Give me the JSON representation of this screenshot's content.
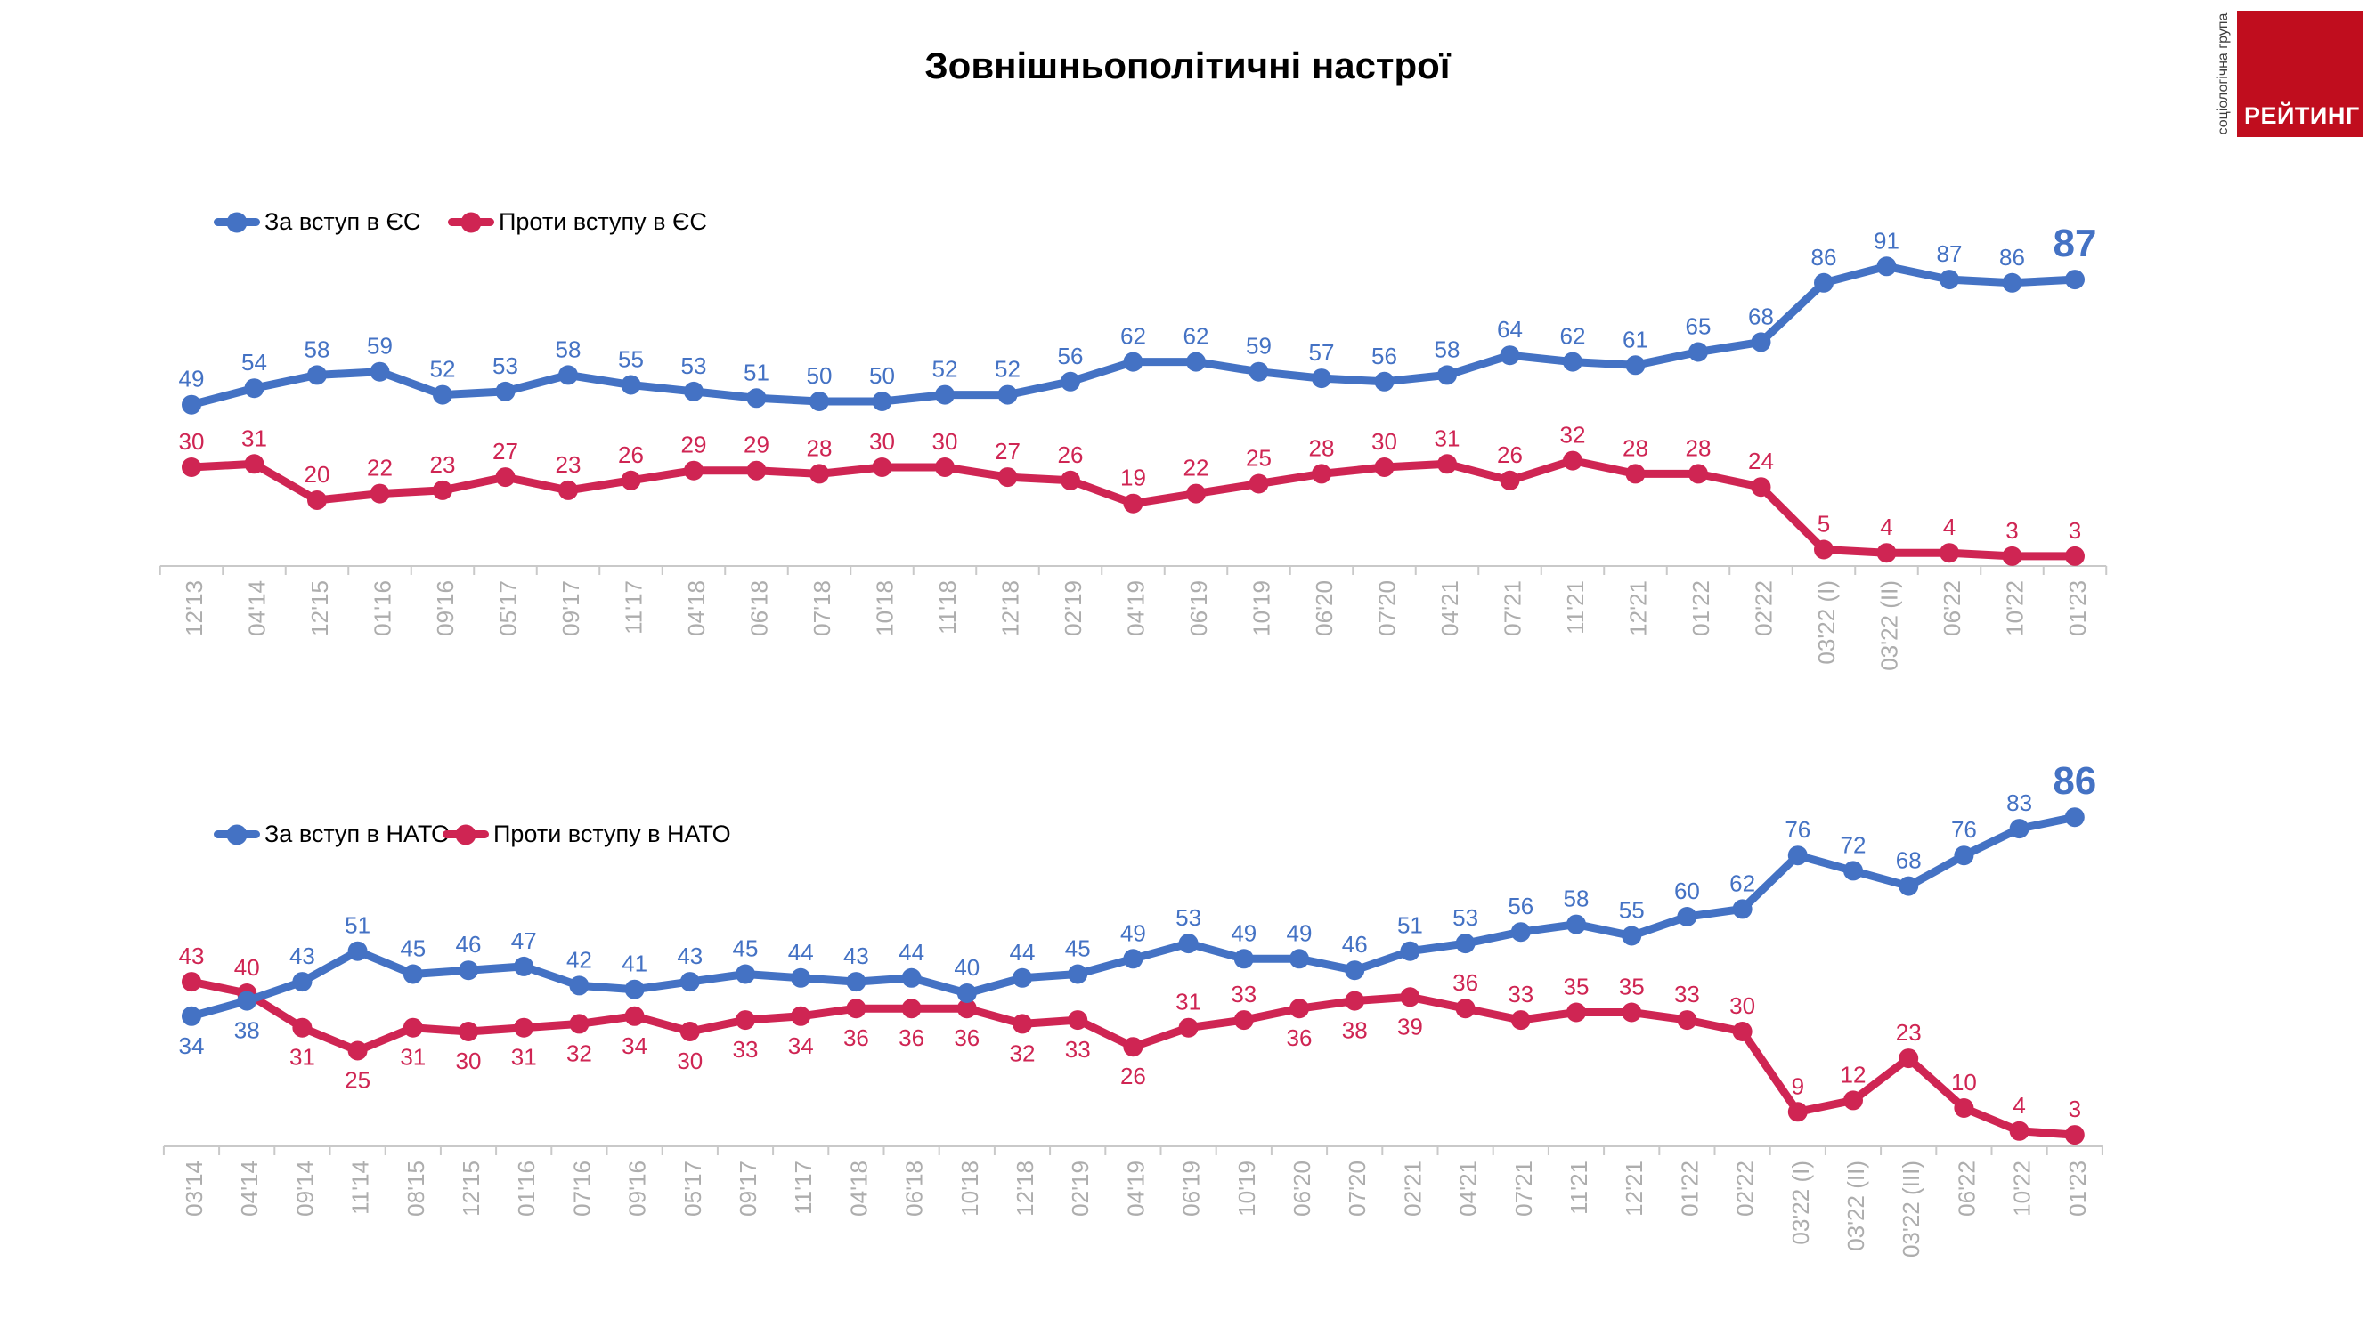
{
  "title": "Зовнішньополітичні настрої",
  "logo": {
    "brand": "РЕЙТИНГ",
    "side_text": "соціологічна група"
  },
  "colors": {
    "blue": "#4472C4",
    "red": "#CF2553",
    "logo_red": "#C00D1E",
    "axis": "#C9C9C9",
    "tick_label": "#ADADAD"
  },
  "chart_data": [
    {
      "type": "line",
      "title": "",
      "legend_position": "top-left",
      "grid": false,
      "ylim": [
        0,
        100
      ],
      "categories": [
        "12'13",
        "04'14",
        "12'15",
        "01'16",
        "09'16",
        "05'17",
        "09'17",
        "11'17",
        "04'18",
        "06'18",
        "07'18",
        "10'18",
        "11'18",
        "12'18",
        "02'19",
        "04'19",
        "06'19",
        "10'19",
        "06'20",
        "07'20",
        "04'21",
        "07'21",
        "11'21",
        "12'21",
        "01'22",
        "02'22",
        "03'22 (I)",
        "03'22 (II)",
        "06'22",
        "10'22",
        "01'23"
      ],
      "series": [
        {
          "name": "За вступ в ЄС",
          "color": "blue",
          "big_last": true,
          "values": [
            49,
            54,
            58,
            59,
            52,
            53,
            58,
            55,
            53,
            51,
            50,
            50,
            52,
            52,
            56,
            62,
            62,
            59,
            57,
            56,
            58,
            64,
            62,
            61,
            65,
            68,
            86,
            91,
            87,
            86,
            87
          ],
          "label_sides": [
            "a",
            "a",
            "a",
            "a",
            "a",
            "a",
            "a",
            "a",
            "a",
            "a",
            "a",
            "a",
            "a",
            "a",
            "a",
            "a",
            "a",
            "a",
            "a",
            "a",
            "a",
            "a",
            "a",
            "a",
            "a",
            "a",
            "a",
            "a",
            "a",
            "a",
            "a"
          ]
        },
        {
          "name": "Проти вступу в ЄС",
          "color": "red",
          "big_last": false,
          "values": [
            30,
            31,
            20,
            22,
            23,
            27,
            23,
            26,
            29,
            29,
            28,
            30,
            30,
            27,
            26,
            19,
            22,
            25,
            28,
            30,
            31,
            26,
            32,
            28,
            28,
            24,
            5,
            4,
            4,
            3,
            3
          ],
          "label_sides": [
            "a",
            "a",
            "a",
            "a",
            "a",
            "a",
            "a",
            "a",
            "a",
            "a",
            "a",
            "a",
            "a",
            "a",
            "a",
            "a",
            "a",
            "a",
            "a",
            "a",
            "a",
            "a",
            "a",
            "a",
            "a",
            "a",
            "a",
            "a",
            "a",
            "a",
            "a"
          ]
        }
      ]
    },
    {
      "type": "line",
      "title": "",
      "legend_position": "top-left",
      "grid": false,
      "ylim": [
        0,
        100
      ],
      "categories": [
        "03'14",
        "04'14",
        "09'14",
        "11'14",
        "08'15",
        "12'15",
        "01'16",
        "07'16",
        "09'16",
        "05'17",
        "09'17",
        "11'17",
        "04'18",
        "06'18",
        "10'18",
        "12'18",
        "02'19",
        "04'19",
        "06'19",
        "10'19",
        "06'20",
        "07'20",
        "02'21",
        "04'21",
        "07'21",
        "11'21",
        "12'21",
        "01'22",
        "02'22",
        "03'22 (I)",
        "03'22 (II)",
        "03'22 (III)",
        "06'22",
        "10'22",
        "01'23"
      ],
      "series": [
        {
          "name": "За вступ в НАТО",
          "color": "blue",
          "big_last": true,
          "values": [
            34,
            38,
            43,
            51,
            45,
            46,
            47,
            42,
            41,
            43,
            45,
            44,
            43,
            44,
            40,
            44,
            45,
            49,
            53,
            49,
            49,
            46,
            51,
            53,
            56,
            58,
            55,
            60,
            62,
            76,
            72,
            68,
            76,
            83,
            86
          ],
          "label_sides": [
            "b",
            "b",
            "a",
            "a",
            "a",
            "a",
            "a",
            "a",
            "a",
            "a",
            "a",
            "a",
            "a",
            "a",
            "a",
            "a",
            "a",
            "a",
            "a",
            "a",
            "a",
            "a",
            "a",
            "a",
            "a",
            "a",
            "a",
            "a",
            "a",
            "a",
            "a",
            "a",
            "a",
            "a",
            "a"
          ]
        },
        {
          "name": "Проти вступу в НАТО",
          "color": "red",
          "big_last": false,
          "values": [
            43,
            40,
            31,
            25,
            31,
            30,
            31,
            32,
            34,
            30,
            33,
            34,
            36,
            36,
            36,
            32,
            33,
            26,
            31,
            33,
            36,
            38,
            39,
            36,
            33,
            35,
            35,
            33,
            30,
            9,
            12,
            23,
            10,
            4,
            3
          ],
          "label_sides": [
            "a",
            "a",
            "b",
            "b",
            "b",
            "b",
            "b",
            "b",
            "b",
            "b",
            "b",
            "b",
            "b",
            "b",
            "b",
            "b",
            "b",
            "b",
            "a",
            "a",
            "b",
            "b",
            "b",
            "a",
            "a",
            "a",
            "a",
            "a",
            "a",
            "a",
            "a",
            "a",
            "a",
            "a",
            "a"
          ]
        }
      ]
    }
  ]
}
